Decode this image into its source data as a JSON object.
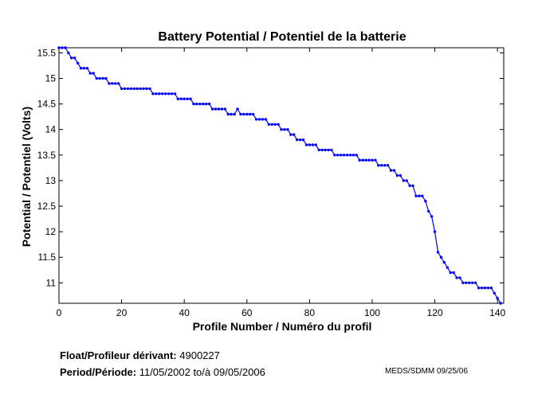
{
  "chart_data": {
    "type": "line",
    "title": "Battery Potential / Potentiel de la batterie",
    "xlabel": "Profile Number / Numéro du profil",
    "ylabel": "Potential / Potentiel (Volts)",
    "xlim": [
      0,
      142
    ],
    "ylim": [
      10.6,
      15.6
    ],
    "xticks": [
      0,
      20,
      40,
      60,
      80,
      100,
      120,
      140
    ],
    "yticks": [
      11,
      11.5,
      12,
      12.5,
      13,
      13.5,
      14,
      14.5,
      15,
      15.5
    ],
    "grid": false,
    "series_color": "#0000ff",
    "x": [
      0,
      1,
      2,
      3,
      4,
      5,
      6,
      7,
      8,
      9,
      10,
      11,
      12,
      13,
      14,
      15,
      16,
      17,
      18,
      19,
      20,
      21,
      22,
      23,
      24,
      25,
      26,
      27,
      28,
      29,
      30,
      31,
      32,
      33,
      34,
      35,
      36,
      37,
      38,
      39,
      40,
      41,
      42,
      43,
      44,
      45,
      46,
      47,
      48,
      49,
      50,
      51,
      52,
      53,
      54,
      55,
      56,
      57,
      58,
      59,
      60,
      61,
      62,
      63,
      64,
      65,
      66,
      67,
      68,
      69,
      70,
      71,
      72,
      73,
      74,
      75,
      76,
      77,
      78,
      79,
      80,
      81,
      82,
      83,
      84,
      85,
      86,
      87,
      88,
      89,
      90,
      91,
      92,
      93,
      94,
      95,
      96,
      97,
      98,
      99,
      100,
      101,
      102,
      103,
      104,
      105,
      106,
      107,
      108,
      109,
      110,
      111,
      112,
      113,
      114,
      115,
      116,
      117,
      118,
      119,
      120,
      121,
      122,
      123,
      124,
      125,
      126,
      127,
      128,
      129,
      130,
      131,
      132,
      133,
      134,
      135,
      136,
      137,
      138,
      139,
      140,
      141
    ],
    "values": [
      15.6,
      15.6,
      15.6,
      15.5,
      15.4,
      15.4,
      15.3,
      15.2,
      15.2,
      15.2,
      15.1,
      15.1,
      15.0,
      15.0,
      15.0,
      15.0,
      14.9,
      14.9,
      14.9,
      14.9,
      14.8,
      14.8,
      14.8,
      14.8,
      14.8,
      14.8,
      14.8,
      14.8,
      14.8,
      14.8,
      14.7,
      14.7,
      14.7,
      14.7,
      14.7,
      14.7,
      14.7,
      14.7,
      14.6,
      14.6,
      14.6,
      14.6,
      14.6,
      14.5,
      14.5,
      14.5,
      14.5,
      14.5,
      14.5,
      14.4,
      14.4,
      14.4,
      14.4,
      14.4,
      14.3,
      14.3,
      14.3,
      14.4,
      14.3,
      14.3,
      14.3,
      14.3,
      14.3,
      14.2,
      14.2,
      14.2,
      14.2,
      14.1,
      14.1,
      14.1,
      14.1,
      14.0,
      14.0,
      14.0,
      13.9,
      13.9,
      13.8,
      13.8,
      13.8,
      13.7,
      13.7,
      13.7,
      13.7,
      13.6,
      13.6,
      13.6,
      13.6,
      13.6,
      13.5,
      13.5,
      13.5,
      13.5,
      13.5,
      13.5,
      13.5,
      13.5,
      13.4,
      13.4,
      13.4,
      13.4,
      13.4,
      13.4,
      13.3,
      13.3,
      13.3,
      13.3,
      13.2,
      13.2,
      13.1,
      13.1,
      13.0,
      13.0,
      12.9,
      12.9,
      12.7,
      12.7,
      12.7,
      12.6,
      12.4,
      12.3,
      12.0,
      11.6,
      11.5,
      11.4,
      11.3,
      11.2,
      11.2,
      11.1,
      11.1,
      11.0,
      11.0,
      11.0,
      11.0,
      11.0,
      10.9,
      10.9,
      10.9,
      10.9,
      10.9,
      10.8,
      10.7,
      10.6
    ]
  },
  "footer": {
    "float_label": "Float/Profileur dérivant:",
    "float_value": "4900227",
    "period_label": "Period/Période:",
    "period_from": "11/05/2002",
    "period_sep": "to/à",
    "period_to": "09/05/2006",
    "credit": "MEDS/SDMM  09/25/06"
  }
}
